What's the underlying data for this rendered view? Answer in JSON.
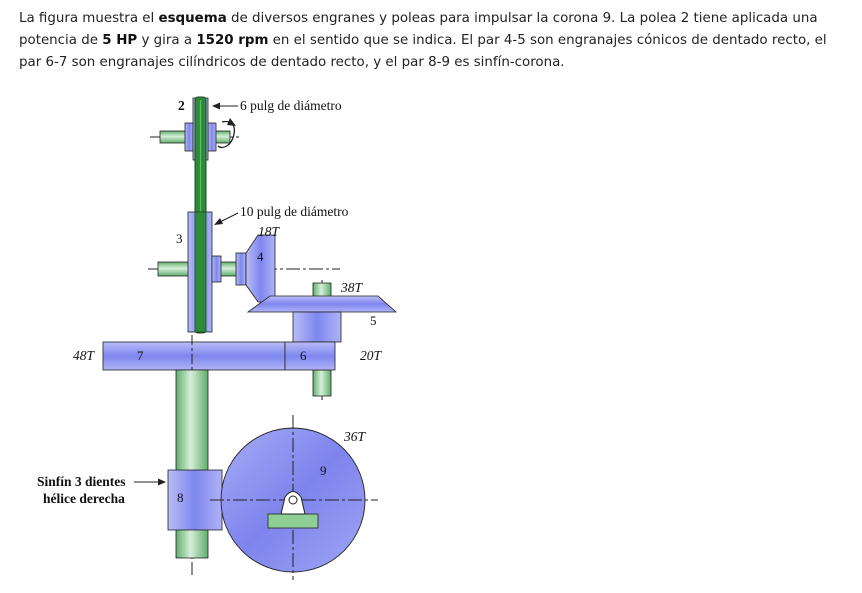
{
  "paragraph": {
    "t1": "La figura muestra el ",
    "b1": "esquema",
    "t2": " de diversos engranes y poleas para impulsar la corona 9. La polea 2 tiene aplicada una potencia de ",
    "b2": "5 HP",
    "t3": " y gira a ",
    "b3": "1520 rpm",
    "t4": " en el sentido que se indica. El par 4-5 son engranajes cónicos de dentado recto, el par 6-7 son engranajes cilíndricos de dentado recto, y el par 8-9 es sinfín-corona."
  },
  "diagram": {
    "labels": {
      "pulley2_num": "2",
      "pulley2_diam": "6 pulg de diámetro",
      "pulley3_diam": "10 pulg de diámetro",
      "pulley3_num": "3",
      "gear4_teeth": "18T",
      "gear4_num": "4",
      "gear5_teeth": "38T",
      "gear5_num": "5",
      "gear7_teeth": "48T",
      "gear7_num": "7",
      "gear6_num": "6",
      "gear6_teeth": "20T",
      "gear9_teeth": "36T",
      "gear9_num": "9",
      "worm_line1": "Sinfín 3 dientes",
      "worm_line2": "hélice derecha",
      "worm_num": "8"
    },
    "colors": {
      "gear_blue": "#8a90f0",
      "shaft_green": "#7fc08a",
      "belt_green": "#2e8b3a",
      "outline": "#1a1a1a"
    }
  }
}
